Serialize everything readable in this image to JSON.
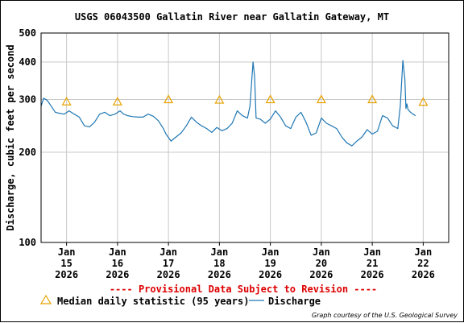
{
  "chart_data": {
    "type": "line",
    "title": "USGS 06043500 Gallatin River near Gallatin Gateway, MT",
    "ylabel": "Discharge, cubic feet per second",
    "xlabel": "",
    "y_scale": "log",
    "ylim": [
      100,
      500
    ],
    "y_ticks": [
      100,
      200,
      300,
      400,
      500
    ],
    "x_ticks": [
      {
        "day": 15,
        "lines": [
          "Jan",
          "15",
          "2026"
        ]
      },
      {
        "day": 16,
        "lines": [
          "Jan",
          "16",
          "2026"
        ]
      },
      {
        "day": 17,
        "lines": [
          "Jan",
          "17",
          "2026"
        ]
      },
      {
        "day": 18,
        "lines": [
          "Jan",
          "18",
          "2026"
        ]
      },
      {
        "day": 19,
        "lines": [
          "Jan",
          "19",
          "2026"
        ]
      },
      {
        "day": 20,
        "lines": [
          "Jan",
          "20",
          "2026"
        ]
      },
      {
        "day": 21,
        "lines": [
          "Jan",
          "21",
          "2026"
        ]
      },
      {
        "day": 22,
        "lines": [
          "Jan",
          "22",
          "2026"
        ]
      }
    ],
    "grid": true,
    "legend_position": "bottom",
    "series": [
      {
        "name": "Discharge",
        "color": "#1f77b4",
        "x": [
          14.5,
          14.55,
          14.62,
          14.7,
          14.78,
          14.85,
          14.95,
          15.05,
          15.15,
          15.25,
          15.35,
          15.45,
          15.55,
          15.65,
          15.75,
          15.85,
          15.95,
          16.05,
          16.12,
          16.2,
          16.3,
          16.4,
          16.5,
          16.6,
          16.7,
          16.8,
          16.9,
          16.95,
          17.05,
          17.15,
          17.25,
          17.35,
          17.45,
          17.55,
          17.65,
          17.75,
          17.85,
          17.95,
          18.05,
          18.15,
          18.25,
          18.3,
          18.35,
          18.45,
          18.55,
          18.6,
          18.66,
          18.69,
          18.72,
          18.8,
          18.9,
          19.0,
          19.1,
          19.2,
          19.3,
          19.4,
          19.5,
          19.6,
          19.7,
          19.8,
          19.9,
          20.0,
          20.1,
          20.2,
          20.3,
          20.4,
          20.5,
          20.6,
          20.7,
          20.8,
          20.9,
          21.0,
          21.1,
          21.2,
          21.3,
          21.4,
          21.5,
          21.55,
          21.6,
          21.64,
          21.66,
          21.68,
          21.7,
          21.75,
          21.8,
          21.85
        ],
        "y": [
          285,
          303,
          298,
          285,
          272,
          270,
          268,
          275,
          268,
          262,
          245,
          243,
          252,
          268,
          272,
          265,
          268,
          275,
          268,
          265,
          263,
          262,
          262,
          268,
          264,
          255,
          240,
          230,
          218,
          225,
          232,
          245,
          262,
          252,
          245,
          240,
          233,
          242,
          236,
          240,
          250,
          262,
          275,
          265,
          260,
          285,
          400,
          360,
          260,
          258,
          250,
          258,
          275,
          262,
          245,
          240,
          262,
          272,
          252,
          228,
          232,
          260,
          250,
          245,
          240,
          225,
          215,
          210,
          218,
          225,
          238,
          230,
          235,
          265,
          260,
          245,
          240,
          285,
          405,
          350,
          280,
          290,
          278,
          272,
          268,
          265
        ]
      },
      {
        "name": "Median daily statistic (95 years)",
        "color": "#e8a200",
        "marker": "triangle",
        "x": [
          15,
          16,
          17,
          18,
          19,
          20,
          21,
          22
        ],
        "y": [
          295,
          295,
          300,
          299,
          300,
          300,
          300,
          294
        ]
      }
    ]
  },
  "notice": "---- Provisional Data Subject to Revision ----",
  "legend": {
    "median_label": "Median daily statistic (95 years)",
    "discharge_label": "Discharge"
  },
  "credit": "Graph courtesy of the U.S. Geological Survey"
}
